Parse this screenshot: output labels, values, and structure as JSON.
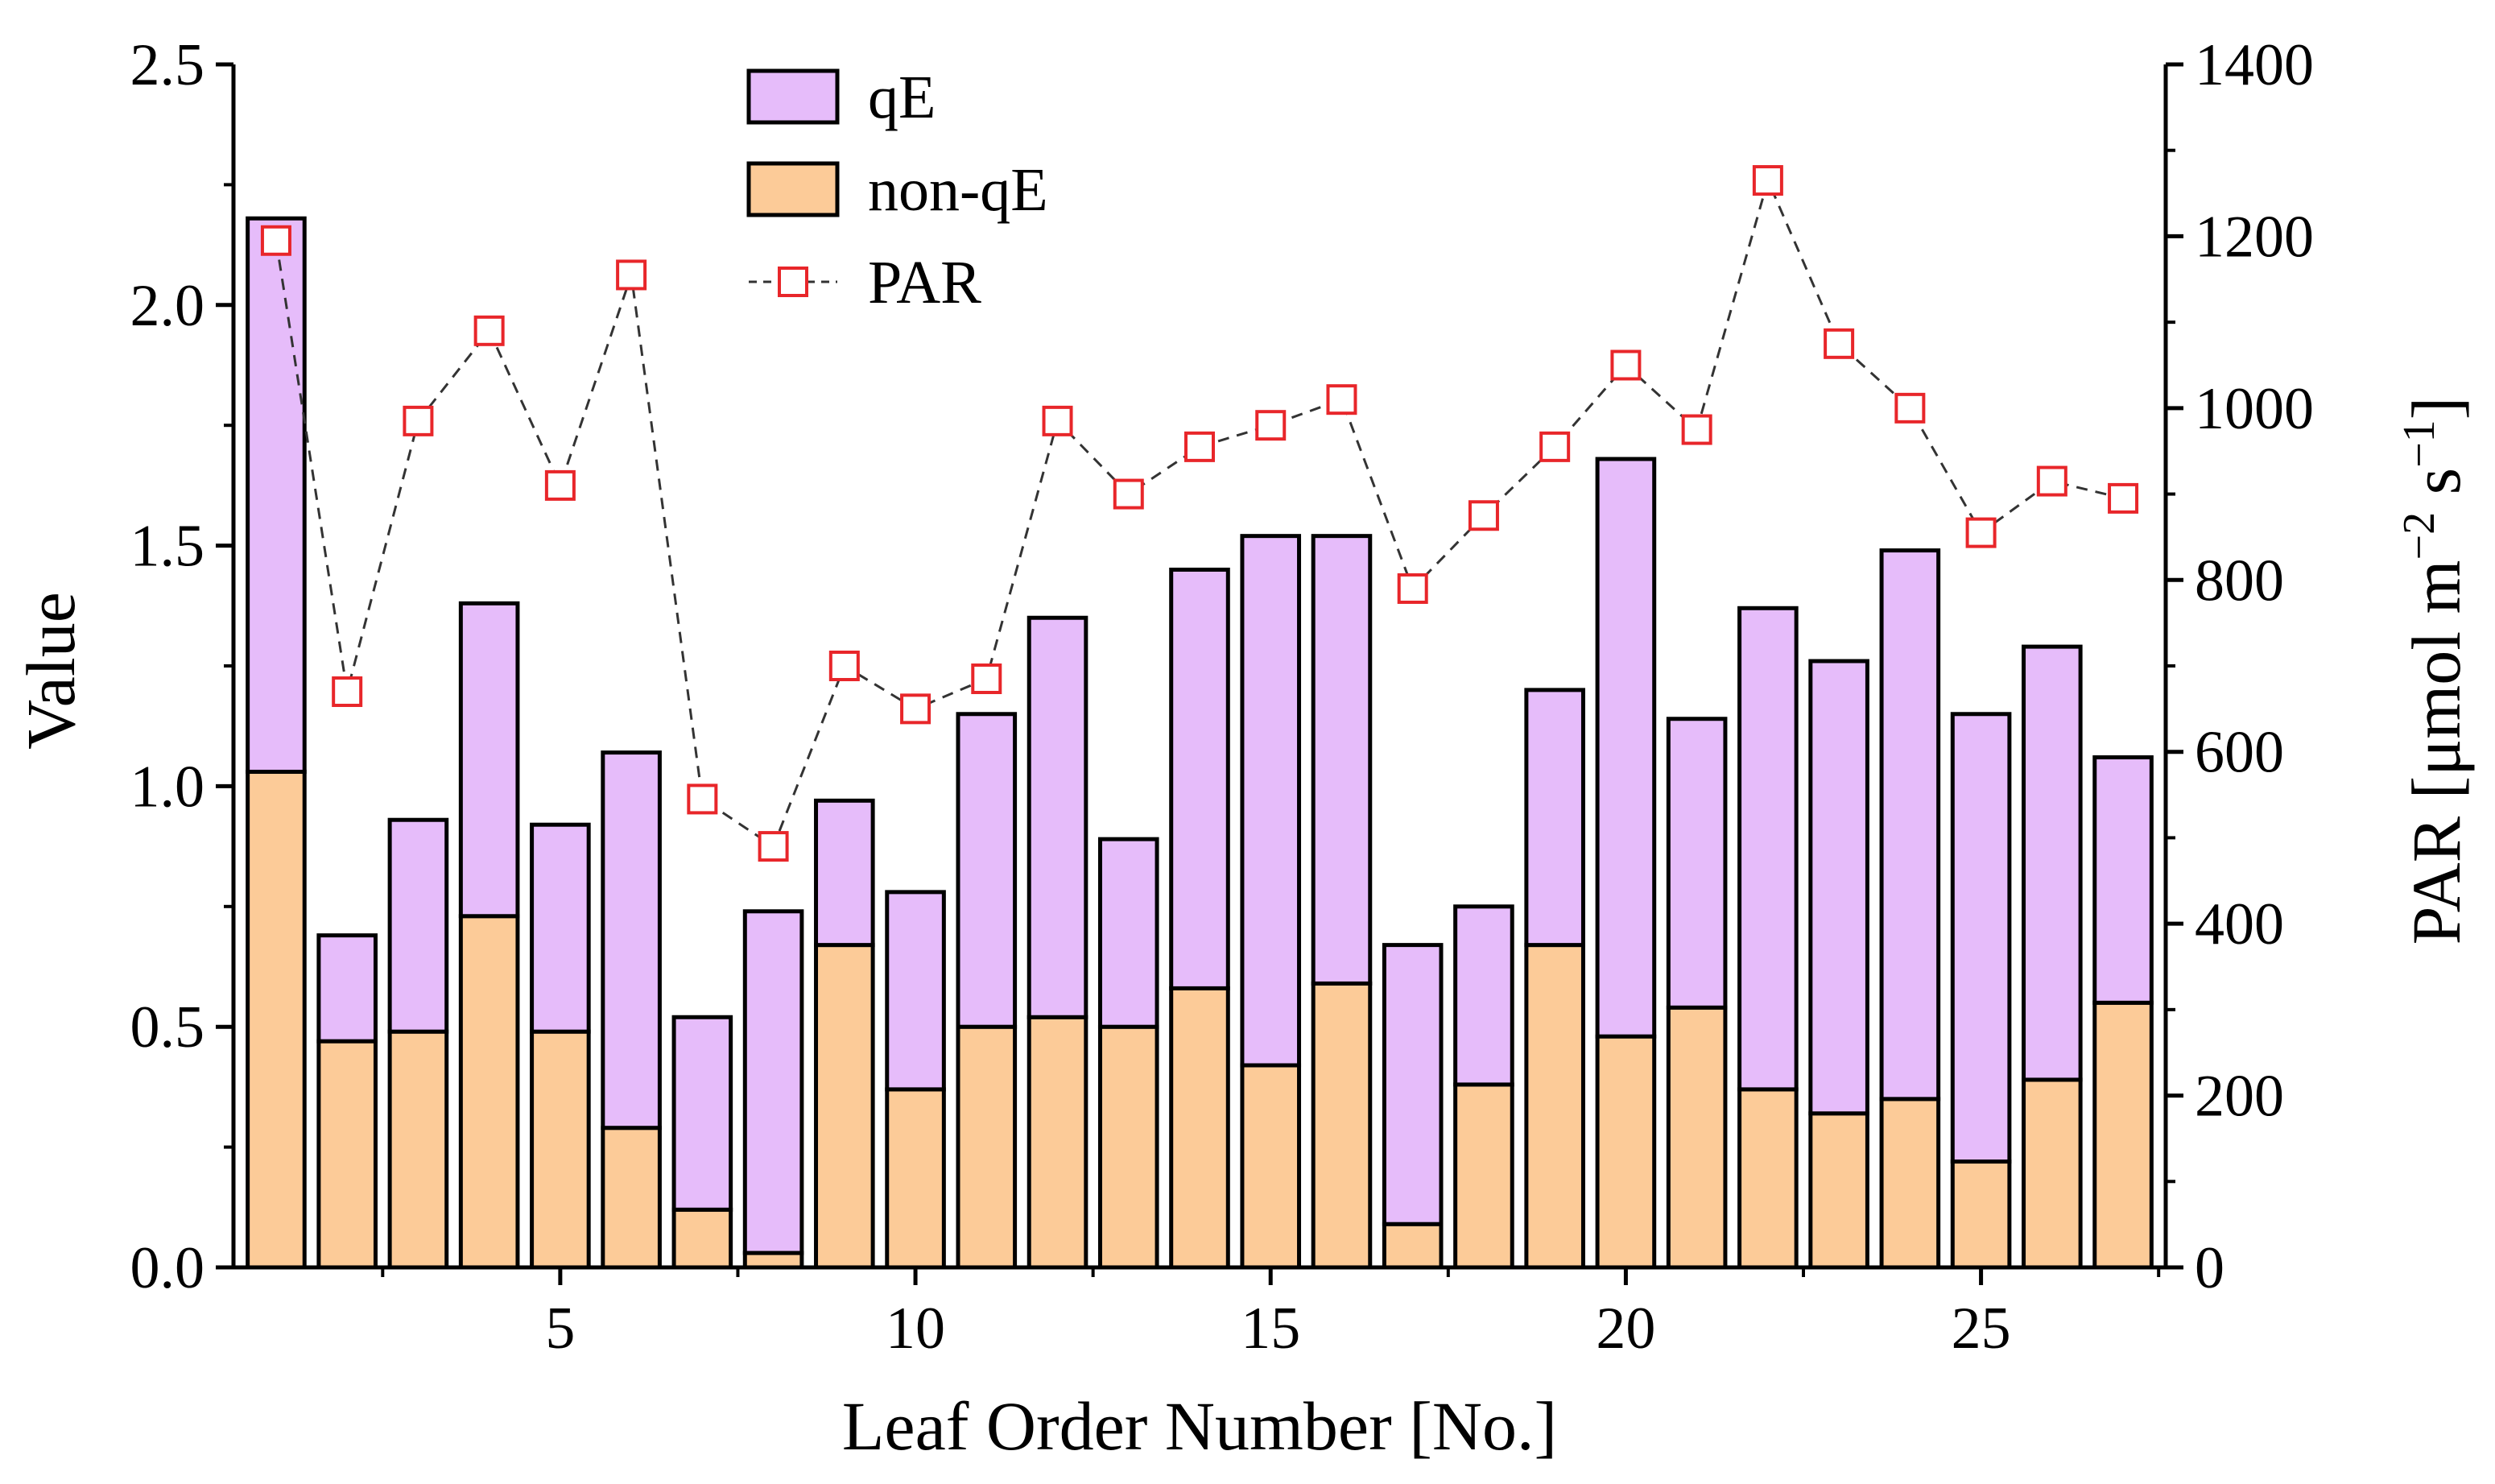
{
  "chart_data": {
    "type": "bar",
    "stacked": true,
    "title": "",
    "xlabel": "Leaf Order Number [No.]",
    "ylabel": "Value",
    "y2label": "PAR [μmol m",
    "y2label_sup1": "−2",
    "y2label_mid": " s",
    "y2label_sup2": "−1",
    "y2label_end": "]",
    "xlim": [
      0.4,
      27.6
    ],
    "ylim": [
      0,
      2.5
    ],
    "y2lim": [
      0,
      1400
    ],
    "x_ticks": [
      5,
      10,
      15,
      20,
      25
    ],
    "x_tick_labels": [
      "5",
      "10",
      "15",
      "20",
      "25"
    ],
    "y_ticks": [
      0,
      0.5,
      1.0,
      1.5,
      2.0,
      2.5
    ],
    "y_tick_labels": [
      "0.0",
      "0.5",
      "1.0",
      "1.5",
      "2.0",
      "2.5"
    ],
    "y2_ticks": [
      0,
      200,
      400,
      600,
      800,
      1000,
      1200,
      1400
    ],
    "y2_tick_labels": [
      "0",
      "200",
      "400",
      "600",
      "800",
      "1000",
      "1200",
      "1400"
    ],
    "categories": [
      1,
      2,
      3,
      4,
      5,
      6,
      7,
      8,
      9,
      10,
      11,
      12,
      13,
      14,
      15,
      16,
      17,
      18,
      19,
      20,
      21,
      22,
      23,
      24,
      25,
      26,
      27
    ],
    "series": [
      {
        "name": "non-qE",
        "kind": "bar",
        "color": "#fccb98",
        "values": [
          1.03,
          0.47,
          0.49,
          0.73,
          0.49,
          0.29,
          0.12,
          0.03,
          0.67,
          0.37,
          0.5,
          0.52,
          0.5,
          0.58,
          0.42,
          0.59,
          0.09,
          0.38,
          0.67,
          0.48,
          0.54,
          0.37,
          0.32,
          0.35,
          0.22,
          0.39,
          0.55
        ]
      },
      {
        "name": "qE",
        "kind": "bar",
        "color": "#e6bcfa",
        "values": [
          1.15,
          0.22,
          0.44,
          0.65,
          0.43,
          0.78,
          0.4,
          0.71,
          0.3,
          0.41,
          0.65,
          0.83,
          0.39,
          0.87,
          1.1,
          0.93,
          0.58,
          0.37,
          0.53,
          1.2,
          0.6,
          1.0,
          0.94,
          1.14,
          0.93,
          0.9,
          0.51
        ]
      },
      {
        "name": "PAR",
        "kind": "line",
        "axis": "right",
        "color": "#e8262a",
        "values": [
          1195,
          670,
          985,
          1090,
          910,
          1155,
          545,
          490,
          700,
          650,
          685,
          985,
          900,
          955,
          980,
          1010,
          790,
          875,
          955,
          1050,
          975,
          1265,
          1075,
          1000,
          855,
          915,
          895
        ]
      }
    ],
    "legend": [
      "qE",
      "non-qE",
      "PAR"
    ],
    "legend_position": "top-center",
    "grid": false
  }
}
